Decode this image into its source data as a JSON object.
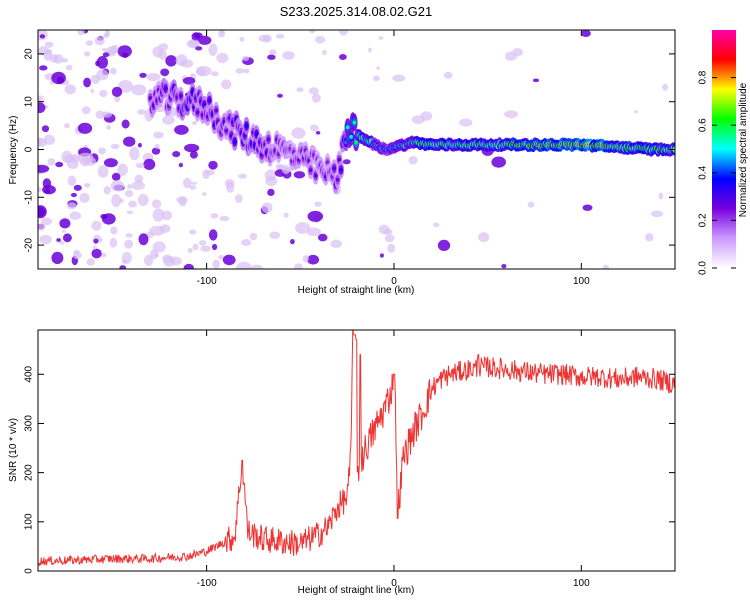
{
  "title": "S233.2025.314.08.02.G21",
  "colors": {
    "snr_line": "#ee3333",
    "frame": "#000000",
    "blob_light": "#d8c0f4",
    "blob_dark": "#6a00d8"
  },
  "chart_data": [
    {
      "type": "heatmap",
      "name": "spectrogram",
      "xlabel": "Height of straight line (km)",
      "ylabel": "Frequency (Hz)",
      "xlim": [
        -190,
        150
      ],
      "ylim": [
        -25,
        25
      ],
      "xticks": [
        -100,
        0,
        100
      ],
      "xtick_labels": [
        "-100",
        "0",
        "100"
      ],
      "yticks": [
        -20,
        -10,
        0,
        10,
        20
      ],
      "ytick_labels": [
        "-20",
        "-10",
        "0",
        "10",
        "20"
      ],
      "colorbar": {
        "label": "Normalized spectral amplitude",
        "range": [
          0,
          1
        ],
        "ticks": [
          0.0,
          0.2,
          0.4,
          0.6,
          0.8
        ],
        "tick_labels": [
          "0.0",
          "0.2",
          "0.4",
          "0.6",
          "0.8"
        ],
        "colormap": [
          "#ffffff",
          "#cc99ff",
          "#7700dd",
          "#0000ff",
          "#00ffff",
          "#00ff00",
          "#ffff00",
          "#ff0000",
          "#ff00aa"
        ]
      },
      "ridge": {
        "x": [
          -130,
          -110,
          -100,
          -90,
          -80,
          -70,
          -60,
          -50,
          -40,
          -30,
          -25,
          -20,
          -15,
          -10,
          -5,
          0,
          5,
          10,
          20,
          40,
          60,
          80,
          100,
          120,
          140,
          150
        ],
        "y": [
          11,
          10,
          9,
          5,
          3,
          1,
          0,
          -2,
          -4,
          -6,
          5,
          3,
          2,
          1,
          0,
          0.5,
          1,
          1.5,
          1,
          1,
          1,
          1,
          1,
          0.5,
          0,
          0
        ],
        "amplitude": [
          0.3,
          0.35,
          0.3,
          0.3,
          0.35,
          0.3,
          0.25,
          0.3,
          0.25,
          0.3,
          0.5,
          0.7,
          0.7,
          0.55,
          0.5,
          0.55,
          0.6,
          0.7,
          0.8,
          0.75,
          0.8,
          0.85,
          0.95,
          0.85,
          0.75,
          0.7
        ]
      }
    },
    {
      "type": "line",
      "name": "snr",
      "xlabel": "Height of straight line (km)",
      "ylabel": "SNR (10 * v/v)",
      "xlim": [
        -190,
        150
      ],
      "ylim": [
        0,
        490
      ],
      "xticks": [
        -100,
        0,
        100
      ],
      "xtick_labels": [
        "-100",
        "0",
        "100"
      ],
      "yticks": [
        0,
        100,
        200,
        300,
        400
      ],
      "ytick_labels": [
        "0",
        "100",
        "200",
        "300",
        "400"
      ],
      "series": [
        {
          "name": "SNR",
          "x": [
            -190,
            -170,
            -150,
            -130,
            -120,
            -110,
            -100,
            -90,
            -85,
            -81,
            -78,
            -70,
            -60,
            -50,
            -40,
            -35,
            -30,
            -25,
            -23,
            -22,
            -21,
            -20,
            -18,
            -15,
            -10,
            -5,
            -2,
            0,
            1,
            2,
            5,
            10,
            15,
            20,
            25,
            30,
            40,
            50,
            60,
            70,
            80,
            90,
            100,
            110,
            120,
            130,
            140,
            150
          ],
          "y": [
            20,
            22,
            25,
            25,
            28,
            30,
            40,
            60,
            70,
            225,
            80,
            65,
            60,
            55,
            75,
            90,
            130,
            150,
            230,
            480,
            470,
            200,
            220,
            250,
            290,
            330,
            360,
            390,
            300,
            120,
            230,
            280,
            320,
            370,
            390,
            400,
            410,
            415,
            410,
            405,
            400,
            400,
            395,
            395,
            390,
            395,
            390,
            380
          ],
          "spikes": [
            [
              -81,
              225
            ],
            [
              -21,
              480
            ],
            [
              -20,
              470
            ],
            [
              -18,
              440
            ],
            [
              2,
              107
            ],
            [
              0,
              400
            ],
            [
              45,
              440
            ]
          ]
        }
      ]
    }
  ]
}
